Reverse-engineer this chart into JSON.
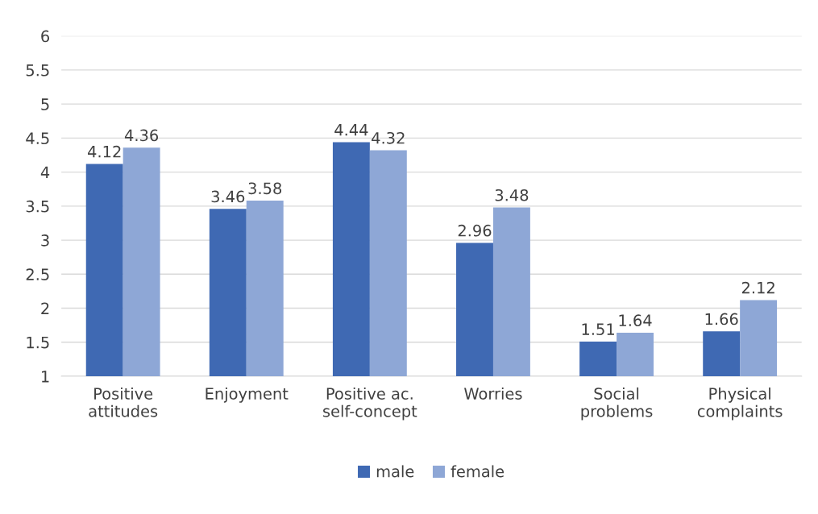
{
  "chart_data": {
    "type": "bar",
    "categories": [
      "Positive\nattitudes",
      "Enjoyment",
      "Positive ac.\nself-concept",
      "Worries",
      "Social\nproblems",
      "Physical\ncomplaints"
    ],
    "series": [
      {
        "name": "male",
        "color": "#3f69b3",
        "values": [
          4.12,
          3.46,
          4.44,
          2.96,
          1.51,
          1.66
        ]
      },
      {
        "name": "female",
        "color": "#8ea7d6",
        "values": [
          4.36,
          3.58,
          4.32,
          3.48,
          1.64,
          2.12
        ]
      }
    ],
    "ylim": [
      1,
      6
    ],
    "yticks": [
      1,
      1.5,
      2,
      2.5,
      3,
      3.5,
      4,
      4.5,
      5,
      5.5,
      6
    ],
    "grid": "y",
    "legend": "bottom",
    "data_labels": true
  }
}
